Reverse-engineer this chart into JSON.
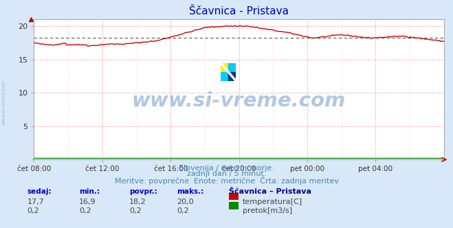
{
  "title": "Ščavnica - Pristava",
  "bg_color": "#d8e8f8",
  "plot_bg_color": "#ffffff",
  "grid_color_major": "#ffaaaa",
  "grid_color_minor": "#ffdddd",
  "x_labels": [
    "čet 08:00",
    "čet 12:00",
    "čet 16:00",
    "čet 20:00",
    "pet 00:00",
    "pet 04:00"
  ],
  "x_ticks_pos": [
    0.0,
    0.166667,
    0.333333,
    0.5,
    0.666667,
    0.833333
  ],
  "y_major_ticks": [
    0,
    5,
    10,
    15,
    20
  ],
  "ylim": [
    0,
    21.0
  ],
  "xlim": [
    0,
    1.0
  ],
  "avg_line_y": 18.2,
  "temp_color": "#cc0000",
  "flow_color": "#008800",
  "avg_line_color": "#555555",
  "watermark_text": "www.si-vreme.com",
  "watermark_color": "#b0c8e0",
  "subtitle1": "Slovenija / reke in morje.",
  "subtitle2": "zadnji dan / 5 minut.",
  "subtitle3": "Meritve: povprečne  Enote: metrične  Črta: zadnja meritev",
  "subtitle_color": "#4488aa",
  "legend_header": "Ščavnica – Pristava",
  "legend_color": "#000088",
  "stat_labels": [
    "sedaj:",
    "min.:",
    "povpr.:",
    "maks.:"
  ],
  "stat_label_color": "#0000cc",
  "stat_values_temp": [
    "17,7",
    "16,9",
    "18,2",
    "20,0"
  ],
  "stat_values_flow": [
    "0,2",
    "0,2",
    "0,2",
    "0,2"
  ],
  "stat_value_color": "#444444",
  "left_label": "www.si-vreme.com",
  "left_label_color": "#99bbcc",
  "arrow_color": "#cc0000"
}
